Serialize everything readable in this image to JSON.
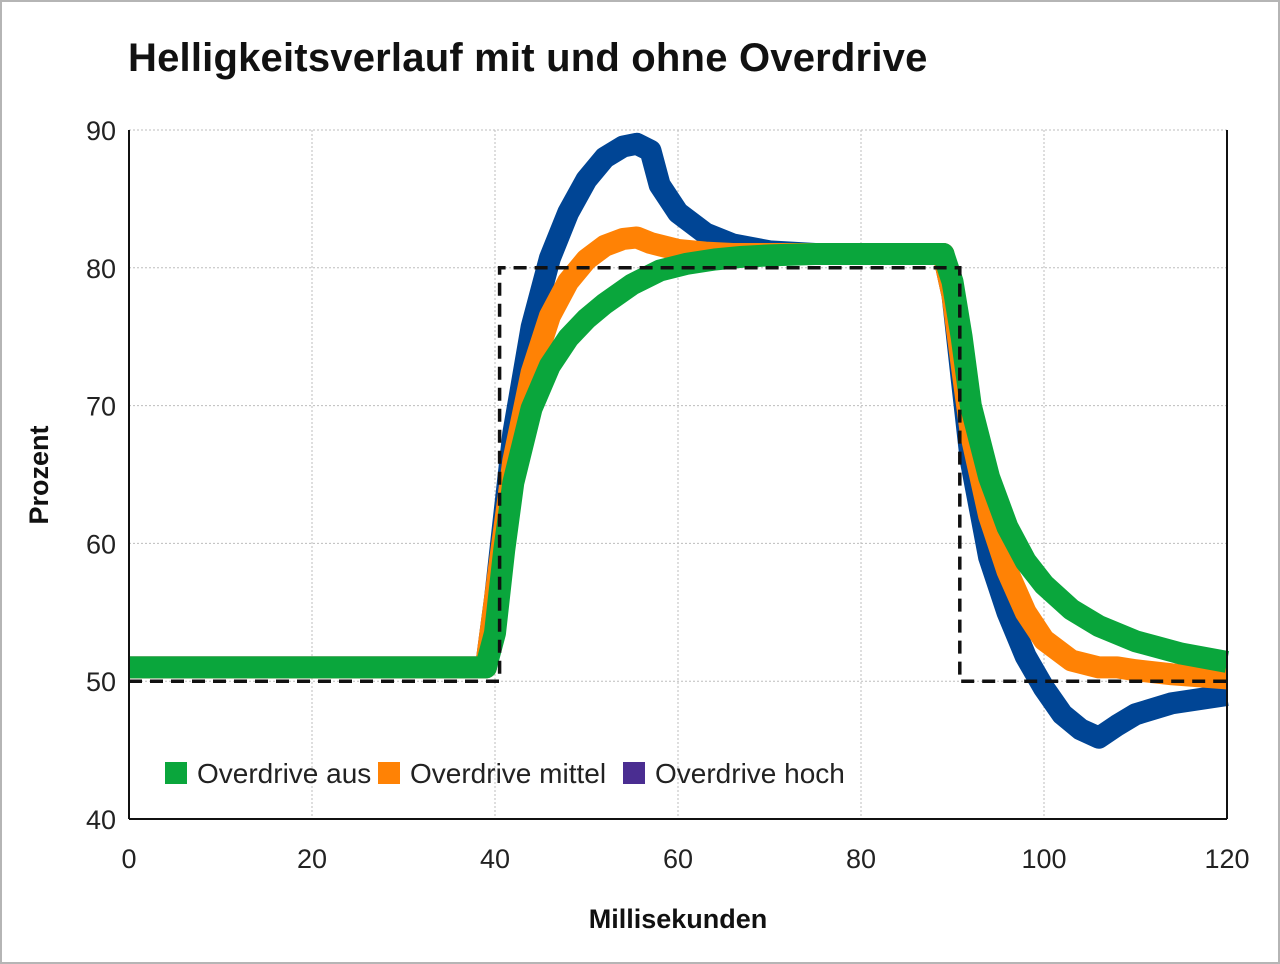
{
  "chart_data": {
    "type": "line",
    "title": "Helligkeitsverlauf mit und ohne Overdrive",
    "xlabel": "Millisekunden",
    "ylabel": "Prozent",
    "xlim": [
      0,
      120
    ],
    "ylim": [
      40,
      90
    ],
    "xticks": [
      0,
      20,
      40,
      60,
      80,
      100,
      120
    ],
    "yticks": [
      40,
      50,
      60,
      70,
      80,
      90
    ],
    "grid": true,
    "legend_position": "bottom-left",
    "series": [
      {
        "name": "Overdrive aus",
        "color": "#0aa63c",
        "x": [
          0,
          38,
          39,
          40,
          41,
          42,
          44,
          46,
          48,
          50,
          52,
          55,
          58,
          61,
          64,
          67,
          70,
          75,
          80,
          85,
          89,
          90,
          91,
          92,
          94,
          96,
          98,
          100,
          103,
          106,
          110,
          115,
          120
        ],
        "y": [
          51,
          51,
          51,
          53.5,
          59.5,
          64.4,
          69.8,
          72.9,
          74.9,
          76.3,
          77.4,
          78.8,
          79.8,
          80.3,
          80.6,
          80.8,
          80.9,
          81,
          81,
          81,
          81,
          79,
          75,
          70,
          64.8,
          61.2,
          58.7,
          57,
          55.2,
          54,
          52.9,
          52,
          51.4
        ]
      },
      {
        "name": "Overdrive mittel",
        "color": "#ff8205",
        "x": [
          0,
          38,
          39,
          40,
          42,
          44,
          46,
          48,
          50,
          52,
          54,
          55.5,
          57,
          60,
          63,
          66,
          70,
          75,
          80,
          85,
          89,
          90,
          91,
          92,
          94,
          96,
          98,
          100,
          103,
          106,
          108,
          110,
          114,
          120
        ],
        "y": [
          51,
          51,
          51,
          56,
          66,
          72.4,
          76.5,
          79,
          80.6,
          81.6,
          82.1,
          82.2,
          81.8,
          81.3,
          81.1,
          81,
          81,
          81,
          81,
          81,
          81,
          78,
          73,
          68,
          62,
          58,
          55,
          53,
          51.5,
          51,
          51,
          50.8,
          50.5,
          50.2
        ]
      },
      {
        "name": "Overdrive hoch",
        "color": "#004595",
        "x": [
          0,
          38,
          39,
          40,
          42,
          44,
          46,
          48,
          50,
          52,
          54,
          55.5,
          57,
          58,
          60,
          63,
          66,
          70,
          75,
          80,
          85,
          89,
          90,
          91,
          92,
          94,
          96,
          98,
          100,
          102,
          104,
          106,
          108,
          110,
          114,
          120
        ],
        "y": [
          51,
          51,
          51,
          56,
          68,
          75.7,
          80.7,
          84,
          86.4,
          88,
          88.8,
          89,
          88.5,
          86,
          84,
          82.5,
          81.7,
          81.2,
          81,
          81,
          81,
          81,
          78,
          72,
          66,
          59,
          55,
          51.8,
          49.5,
          47.6,
          46.5,
          45.9,
          46.8,
          47.6,
          48.4,
          49
        ]
      }
    ],
    "reference_signal": {
      "style": "dashed",
      "color": "#111111",
      "x": [
        0,
        40.5,
        40.5,
        90.8,
        90.8,
        120
      ],
      "y": [
        50,
        50,
        80,
        80,
        50,
        50
      ]
    }
  }
}
